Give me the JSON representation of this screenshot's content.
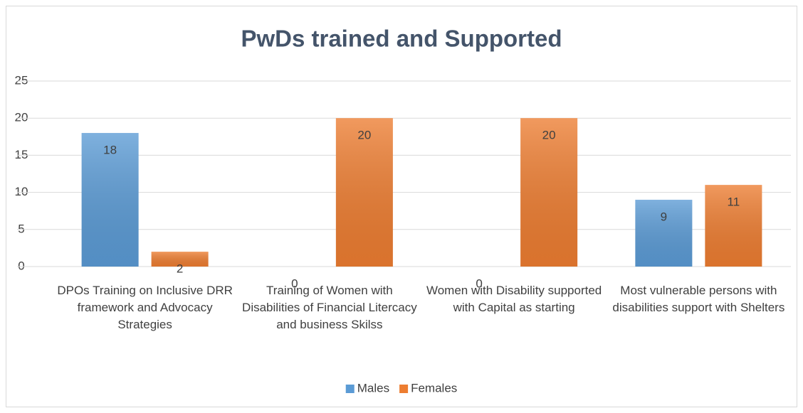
{
  "chart_data": {
    "type": "bar",
    "title": "PwDs trained and Supported",
    "categories": [
      "DPOs Training  on Inclusive DRR framework and Advocacy Strategies",
      "Training of  Women with Disabilities of Financial Litercacy and business Skilss",
      "Women with Disability supported with Capital  as starting",
      "Most  vulnerable persons with disabilities support with  Shelters"
    ],
    "series": [
      {
        "name": "Males",
        "color": "#5b9bd5",
        "values": [
          18,
          0,
          0,
          9
        ]
      },
      {
        "name": "Females",
        "color": "#ed7d31",
        "values": [
          2,
          20,
          20,
          11
        ]
      }
    ],
    "ylim": [
      0,
      25
    ],
    "yticks": [
      0,
      5,
      10,
      15,
      20,
      25
    ],
    "grid": true,
    "legend": "bottom"
  }
}
